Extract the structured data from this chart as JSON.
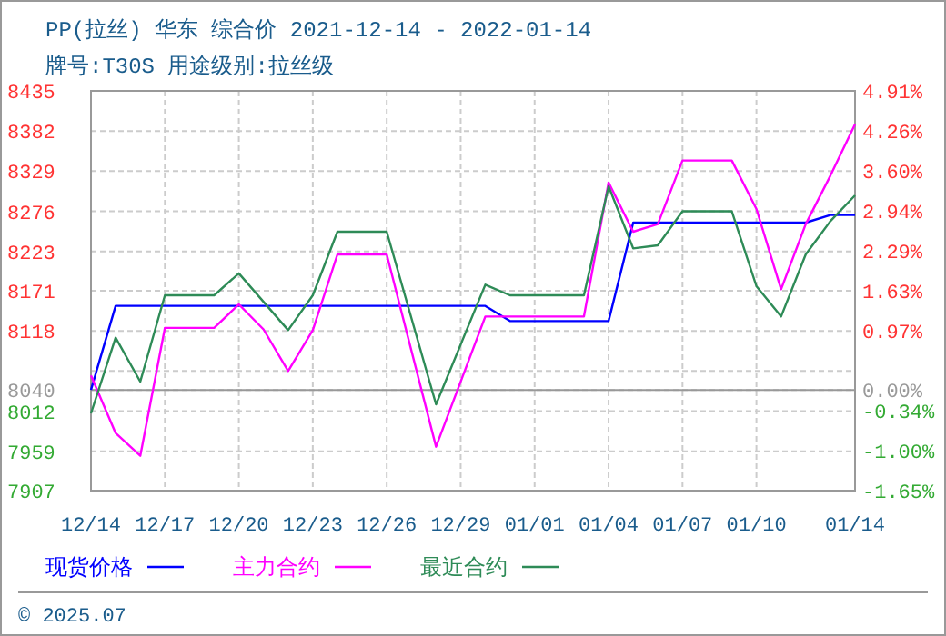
{
  "chart_data": {
    "type": "line",
    "title": "PP(拉丝) 华东 综合价 2021-12-14 - 2022-01-14",
    "subtitle": "牌号:T30S 用途级别:拉丝级",
    "xlim": [
      "2021-12-14",
      "2022-01-14"
    ],
    "xticks": [
      {
        "value": "2021-12-14",
        "label": "12/14"
      },
      {
        "value": "2021-12-17",
        "label": "12/17"
      },
      {
        "value": "2021-12-20",
        "label": "12/20"
      },
      {
        "value": "2021-12-23",
        "label": "12/23"
      },
      {
        "value": "2021-12-26",
        "label": "12/26"
      },
      {
        "value": "2021-12-29",
        "label": "12/29"
      },
      {
        "value": "2022-01-01",
        "label": "01/01"
      },
      {
        "value": "2022-01-04",
        "label": "01/04"
      },
      {
        "value": "2022-01-07",
        "label": "01/07"
      },
      {
        "value": "2022-01-10",
        "label": "01/10"
      },
      {
        "value": "2022-01-14",
        "label": "01/14"
      }
    ],
    "ylim": [
      7907,
      8435
    ],
    "yticks": [
      8435,
      8382,
      8329,
      8276,
      8223,
      8171,
      8118,
      {
        "value": 8065,
        "label": null
      },
      8040,
      8012,
      7959,
      7907
    ],
    "y2lim": [
      -1.65,
      4.91
    ],
    "y2ticks": [
      {
        "value": 4.91,
        "label": "4.91%"
      },
      {
        "value": 4.26,
        "label": "4.26%"
      },
      {
        "value": 3.6,
        "label": "3.60%"
      },
      {
        "value": 2.94,
        "label": "2.94%"
      },
      {
        "value": 2.29,
        "label": "2.29%"
      },
      {
        "value": 1.63,
        "label": "1.63%"
      },
      {
        "value": 0.97,
        "label": "0.97%"
      },
      {
        "value": 0,
        "label": "0.00%"
      },
      {
        "value": -0.34,
        "label": "-0.34%"
      },
      {
        "value": -1.0,
        "label": "-1.00%"
      },
      {
        "value": -1.65,
        "label": "-1.65%"
      }
    ],
    "ref_lines": [
      {
        "axis": "y",
        "value": 8040,
        "color": "#999999"
      }
    ],
    "grid": true,
    "legend": "bottom",
    "marker": "none",
    "line_style": "solid",
    "series": [
      {
        "name": "现货价格",
        "color": "#0000ff",
        "x": [
          "2021-12-14",
          "2021-12-15",
          "2021-12-30",
          "2021-12-31",
          "2022-01-04",
          "2022-01-05",
          "2022-01-12",
          "2022-01-13",
          "2022-01-14"
        ],
        "values": [
          8040,
          8151,
          8151,
          8131,
          8131,
          8261,
          8261,
          8271,
          8271
        ]
      },
      {
        "name": "主力合约",
        "color": "#ff00ff",
        "x": [
          "2021-12-14",
          "2021-12-15",
          "2021-12-16",
          "2021-12-17",
          "2021-12-19",
          "2021-12-20",
          "2021-12-21",
          "2021-12-22",
          "2021-12-23",
          "2021-12-24",
          "2021-12-26",
          "2021-12-28",
          "2021-12-30",
          "2022-01-03",
          "2022-01-04",
          "2022-01-05",
          "2022-01-06",
          "2022-01-07",
          "2022-01-09",
          "2022-01-10",
          "2022-01-11",
          "2022-01-12",
          "2022-01-13",
          "2022-01-14"
        ],
        "values": [
          8059,
          7983,
          7953,
          8122,
          8122,
          8153,
          8120,
          8065,
          8119,
          8219,
          8219,
          7965,
          8137,
          8137,
          8314,
          8249,
          8259,
          8343,
          8343,
          8279,
          8173,
          8259,
          8323,
          8391
        ]
      },
      {
        "name": "最近合约",
        "color": "#2e8b57",
        "x": [
          "2021-12-14",
          "2021-12-15",
          "2021-12-16",
          "2021-12-17",
          "2021-12-19",
          "2021-12-20",
          "2021-12-22",
          "2021-12-23",
          "2021-12-24",
          "2021-12-26",
          "2021-12-28",
          "2021-12-30",
          "2021-12-31",
          "2022-01-03",
          "2022-01-04",
          "2022-01-05",
          "2022-01-06",
          "2022-01-07",
          "2022-01-09",
          "2022-01-10",
          "2022-01-11",
          "2022-01-12",
          "2022-01-13",
          "2022-01-14"
        ],
        "values": [
          8009,
          8109,
          8051,
          8165,
          8165,
          8194,
          8119,
          8165,
          8249,
          8249,
          8021,
          8179,
          8165,
          8165,
          8309,
          8227,
          8231,
          8276,
          8276,
          8177,
          8137,
          8219,
          8263,
          8297
        ]
      }
    ],
    "annotations": [
      "© 2025.07"
    ]
  }
}
